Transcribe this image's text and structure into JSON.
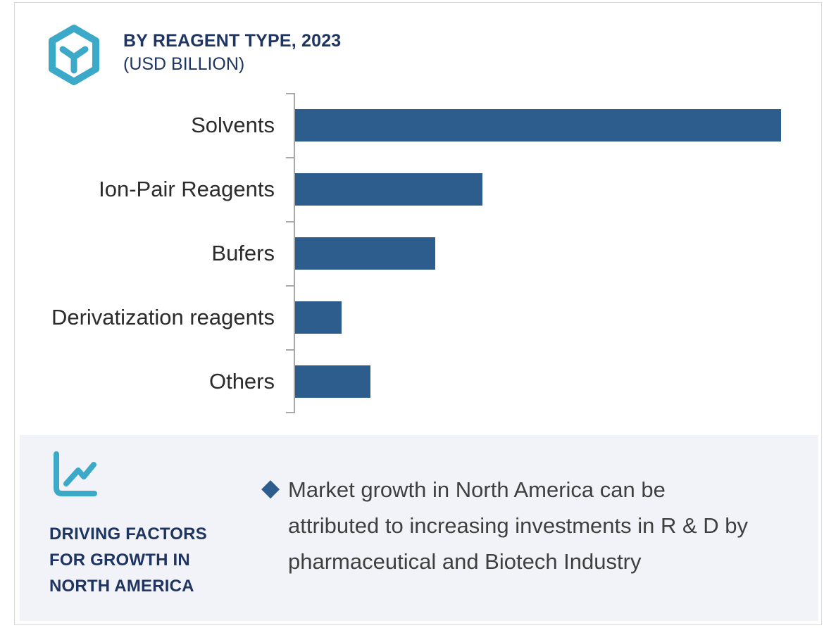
{
  "frame": {
    "background": "#ffffff",
    "border_color": "#d7d8dc"
  },
  "header": {
    "icon": "hexagon-y-logo-icon",
    "title_lines": [
      "BY REAGENT TYPE, 2023",
      "(USD BILLION)"
    ],
    "title_color": "#1e3461",
    "accent_teal": "#3ca9c8"
  },
  "chart_data": {
    "type": "bar",
    "orientation": "horizontal",
    "title": "BY REAGENT TYPE, 2023 (USD BILLION)",
    "unit": "USD Billion",
    "categories": [
      "Solvents",
      "Ion-Pair Reagents",
      "Bufers",
      "Derivatization reagents",
      "Others"
    ],
    "values_pct_of_max": [
      100,
      38.6,
      28.8,
      9.6,
      15.5
    ],
    "value_labels_shown": false,
    "value_axis_visible": false,
    "category_axis": {
      "line": true,
      "tick_count": 6,
      "color": "#a9a9a9"
    },
    "bar_color": "#2d5d8c",
    "grid": false,
    "legend": "none"
  },
  "panel": {
    "background": "#f1f3f8",
    "icon": "line-chart-icon",
    "heading_lines": [
      "DRIVING FACTORS",
      "FOR GROWTH IN",
      "NORTH AMERICA"
    ],
    "heading_color": "#1e3461",
    "bullet": {
      "marker": "diamond-bullet-icon",
      "marker_glyph": "◆",
      "marker_color": "#2d5d8c",
      "text_lines": [
        "Market growth in North America can be",
        "attributed to increasing investments in R & D by",
        "pharmaceutical and Biotech Industry"
      ],
      "text": "Market growth in North America can be attributed to increasing investments in R & D by pharmaceutical and Biotech Industry"
    }
  }
}
